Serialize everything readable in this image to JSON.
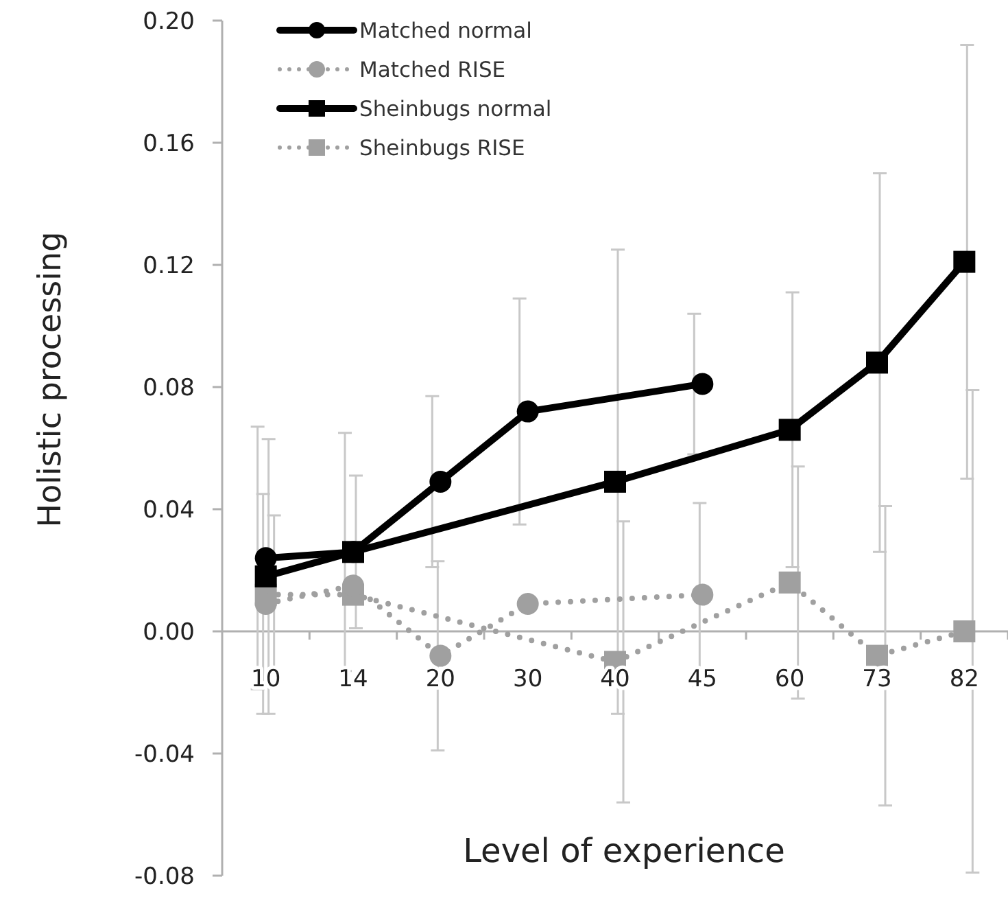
{
  "chart_data": {
    "type": "line",
    "xlabel": "Level of experience",
    "ylabel": "Holistic processing",
    "categories": [
      "10",
      "14",
      "20",
      "30",
      "40",
      "45",
      "60",
      "73",
      "82"
    ],
    "ylim": [
      -0.08,
      0.2
    ],
    "yticks": [
      {
        "value": -0.08,
        "label": "-0.08"
      },
      {
        "value": -0.04,
        "label": "-0.04"
      },
      {
        "value": 0,
        "label": "0.00"
      },
      {
        "value": 0.04,
        "label": "0.04"
      },
      {
        "value": 0.08,
        "label": "0.08"
      },
      {
        "value": 0.12,
        "label": "0.12"
      },
      {
        "value": 0.16,
        "label": "0.16"
      },
      {
        "value": 0.2,
        "label": "0.20"
      }
    ],
    "grid": false,
    "legend": "top left",
    "series": [
      {
        "name": "Matched normal",
        "color": "#000000",
        "marker": "circle",
        "line_style": "solid",
        "values": [
          0.024,
          0.026,
          0.049,
          0.072,
          null,
          0.081,
          null,
          null,
          null
        ],
        "errors": [
          0.043,
          0.039,
          0.028,
          0.037,
          null,
          0.023,
          null,
          null,
          null
        ]
      },
      {
        "name": "Matched RISE",
        "color": "#a0a0a0",
        "marker": "circle",
        "line_style": "dotted",
        "values": [
          0.009,
          0.015,
          -0.008,
          0.009,
          null,
          0.012,
          null,
          null,
          null
        ],
        "errors": [
          0.036,
          null,
          0.031,
          null,
          null,
          0.03,
          null,
          null,
          null
        ]
      },
      {
        "name": "Sheinbugs normal",
        "color": "#000000",
        "marker": "square",
        "line_style": "solid",
        "values": [
          0.018,
          0.026,
          null,
          null,
          0.049,
          null,
          0.066,
          0.088,
          0.121
        ],
        "errors": [
          0.045,
          0.025,
          null,
          null,
          0.076,
          null,
          0.045,
          0.062,
          0.071
        ]
      },
      {
        "name": "Sheinbugs RISE",
        "color": "#a0a0a0",
        "marker": "square",
        "line_style": "dotted",
        "values": [
          0.012,
          0.012,
          null,
          null,
          -0.01,
          null,
          0.016,
          -0.008,
          0
        ],
        "errors": [
          0.026,
          null,
          null,
          null,
          0.046,
          null,
          0.038,
          0.049,
          0.079
        ]
      }
    ]
  }
}
